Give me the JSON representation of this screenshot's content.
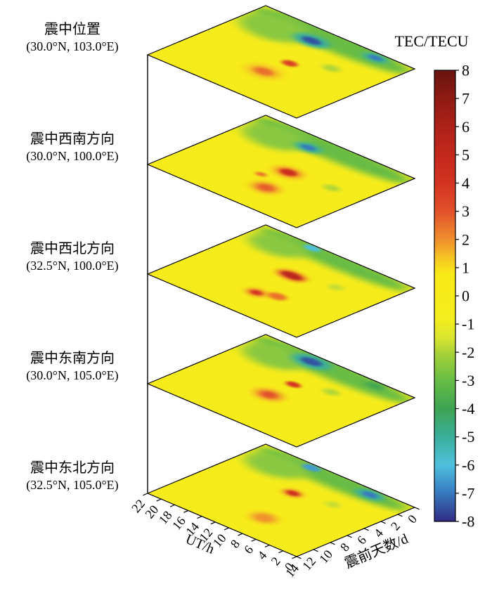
{
  "chart_data": {
    "type": "heatmap",
    "description": "Stack of 5 oblique TEC anomaly maps (UT hour vs days before earthquake) at and around the epicenter, sharing one color scale.",
    "x": {
      "label": "UT/h",
      "range": [
        0,
        22
      ],
      "ticks": [
        22,
        20,
        18,
        16,
        14,
        12,
        10,
        8,
        6,
        4,
        2,
        0
      ]
    },
    "y": {
      "label": "震前天数/d",
      "range": [
        0,
        14
      ],
      "ticks": [
        14,
        12,
        10,
        8,
        6,
        4,
        2,
        0
      ]
    },
    "background_value": 0,
    "colorbar": {
      "label": "TEC/TECU",
      "range": [
        -8,
        8
      ],
      "ticks": [
        8,
        7,
        6,
        5,
        4,
        3,
        2,
        1,
        0,
        -1,
        -2,
        -3,
        -4,
        -5,
        -6,
        -7,
        -8
      ],
      "stops": [
        {
          "v": 8,
          "c": "#681410"
        },
        {
          "v": 7,
          "c": "#8e1a13"
        },
        {
          "v": 6,
          "c": "#ad2118"
        },
        {
          "v": 5,
          "c": "#c3281c"
        },
        {
          "v": 4,
          "c": "#d33322"
        },
        {
          "v": 3,
          "c": "#e1512a"
        },
        {
          "v": 2,
          "c": "#f08e2e"
        },
        {
          "v": 1.3,
          "c": "#f6c823"
        },
        {
          "v": 0.8,
          "c": "#f8ea17"
        },
        {
          "v": -0.8,
          "c": "#f5ee1e"
        },
        {
          "v": -1.5,
          "c": "#d8e52f"
        },
        {
          "v": -2,
          "c": "#aad338"
        },
        {
          "v": -3,
          "c": "#67bc45"
        },
        {
          "v": -4,
          "c": "#3ea452"
        },
        {
          "v": -5,
          "c": "#3aaf9b"
        },
        {
          "v": -6,
          "c": "#4fc0dd"
        },
        {
          "v": -6.8,
          "c": "#3a87c8"
        },
        {
          "v": -7.5,
          "c": "#3353a0"
        },
        {
          "v": -8,
          "c": "#322a85"
        }
      ]
    },
    "layers": [
      {
        "name": "震中位置",
        "coordinates": "(30.0°N, 103.0°E)",
        "anomalies": [
          {
            "ut": 11,
            "days_before": 1.0,
            "tec": -3,
            "spread_ut": 11.5,
            "spread_days": 1.6,
            "blur": 0.035
          },
          {
            "ut": 17.5,
            "days_before": 2.6,
            "tec": -2.5,
            "spread_ut": 4.5,
            "spread_days": 2.2,
            "blur": 0.035
          },
          {
            "ut": 12.5,
            "days_before": 2.2,
            "tec": -5,
            "spread_ut": 2.4,
            "spread_days": 1.0,
            "blur": 0.02
          },
          {
            "ut": 12.5,
            "days_before": 2.2,
            "tec": -7.5,
            "spread_ut": 1.3,
            "spread_days": 0.5,
            "blur": 0.012
          },
          {
            "ut": 4.8,
            "days_before": 0.8,
            "tec": -5,
            "spread_ut": 1.7,
            "spread_days": 0.7,
            "blur": 0.02
          },
          {
            "ut": 4.8,
            "days_before": 0.8,
            "tec": -7,
            "spread_ut": 0.9,
            "spread_days": 0.35,
            "blur": 0.012
          },
          {
            "ut": 6.2,
            "days_before": 4.9,
            "tec": -2,
            "spread_ut": 1.1,
            "spread_days": 0.55,
            "blur": 0.018
          },
          {
            "ut": 10.6,
            "days_before": 9.4,
            "tec": 1.5,
            "spread_ut": 2.2,
            "spread_days": 1.1,
            "blur": 0.03
          },
          {
            "ut": 10.6,
            "days_before": 9.4,
            "tec": 2.5,
            "spread_ut": 1.3,
            "spread_days": 0.6,
            "blur": 0.015
          },
          {
            "ut": 10.1,
            "days_before": 6.7,
            "tec": 3.5,
            "spread_ut": 1.0,
            "spread_days": 0.5,
            "blur": 0.012
          }
        ]
      },
      {
        "name": "震中西南方向",
        "coordinates": "(30.0°N, 100.0°E)",
        "anomalies": [
          {
            "ut": 11,
            "days_before": 1.0,
            "tec": -3,
            "spread_ut": 11.5,
            "spread_days": 1.5,
            "blur": 0.035
          },
          {
            "ut": 17.5,
            "days_before": 2.5,
            "tec": -2.5,
            "spread_ut": 4.2,
            "spread_days": 2.0,
            "blur": 0.035
          },
          {
            "ut": 13.2,
            "days_before": 2.0,
            "tec": -5,
            "spread_ut": 1.8,
            "spread_days": 0.75,
            "blur": 0.02
          },
          {
            "ut": 13.2,
            "days_before": 2.0,
            "tec": -7,
            "spread_ut": 0.9,
            "spread_days": 0.4,
            "blur": 0.012
          },
          {
            "ut": 10.3,
            "days_before": 6.7,
            "tec": 2,
            "spread_ut": 1.8,
            "spread_days": 0.9,
            "blur": 0.025
          },
          {
            "ut": 10.3,
            "days_before": 6.7,
            "tec": 4.5,
            "spread_ut": 1.1,
            "spread_days": 0.55,
            "blur": 0.012
          },
          {
            "ut": 9.3,
            "days_before": 10.2,
            "tec": 2,
            "spread_ut": 1.7,
            "spread_days": 0.95,
            "blur": 0.025
          },
          {
            "ut": 9.3,
            "days_before": 10.2,
            "tec": 2.8,
            "spread_ut": 1.0,
            "spread_days": 0.55,
            "blur": 0.015
          },
          {
            "ut": 4.4,
            "days_before": 6.3,
            "tec": -2,
            "spread_ut": 1.0,
            "spread_days": 0.5,
            "blur": 0.018
          },
          {
            "ut": 12.0,
            "days_before": 8.6,
            "tec": 2.5,
            "spread_ut": 0.7,
            "spread_days": 0.35,
            "blur": 0.012
          }
        ]
      },
      {
        "name": "震中西北方向",
        "coordinates": "(32.5°N, 100.0°E)",
        "anomalies": [
          {
            "ut": 11,
            "days_before": 0.8,
            "tec": -3,
            "spread_ut": 11,
            "spread_days": 1.3,
            "blur": 0.035
          },
          {
            "ut": 17.5,
            "days_before": 2.2,
            "tec": -2.5,
            "spread_ut": 3.8,
            "spread_days": 1.7,
            "blur": 0.035
          },
          {
            "ut": 14.5,
            "days_before": 0.5,
            "tec": -6,
            "spread_ut": 1.1,
            "spread_days": 0.45,
            "blur": 0.012
          },
          {
            "ut": 11.2,
            "days_before": 5.6,
            "tec": 2.5,
            "spread_ut": 2.0,
            "spread_days": 0.8,
            "blur": 0.02
          },
          {
            "ut": 11.2,
            "days_before": 5.6,
            "tec": 5.5,
            "spread_ut": 1.4,
            "spread_days": 0.5,
            "blur": 0.012
          },
          {
            "ut": 10.8,
            "days_before": 10.1,
            "tec": 2,
            "spread_ut": 1.3,
            "spread_days": 0.7,
            "blur": 0.02
          },
          {
            "ut": 10.8,
            "days_before": 10.1,
            "tec": 4,
            "spread_ut": 0.75,
            "spread_days": 0.4,
            "blur": 0.012
          },
          {
            "ut": 8.6,
            "days_before": 9.4,
            "tec": 2.5,
            "spread_ut": 1.2,
            "spread_days": 0.6,
            "blur": 0.015
          },
          {
            "ut": 5.9,
            "days_before": 4.6,
            "tec": -1.8,
            "spread_ut": 0.9,
            "spread_days": 0.5,
            "blur": 0.02
          }
        ]
      },
      {
        "name": "震中东南方向",
        "coordinates": "(30.0°N, 105.0°E)",
        "anomalies": [
          {
            "ut": 11,
            "days_before": 1.0,
            "tec": -3,
            "spread_ut": 11.5,
            "spread_days": 1.5,
            "blur": 0.035
          },
          {
            "ut": 17.5,
            "days_before": 2.5,
            "tec": -2.5,
            "spread_ut": 4.2,
            "spread_days": 2.0,
            "blur": 0.035
          },
          {
            "ut": 13.9,
            "days_before": 1.1,
            "tec": -5,
            "spread_ut": 2.6,
            "spread_days": 1.1,
            "blur": 0.022
          },
          {
            "ut": 13.9,
            "days_before": 1.1,
            "tec": -7.5,
            "spread_ut": 1.4,
            "spread_days": 0.55,
            "blur": 0.012
          },
          {
            "ut": 5.0,
            "days_before": 0.7,
            "tec": -4,
            "spread_ut": 1.3,
            "spread_days": 0.5,
            "blur": 0.02
          },
          {
            "ut": 11.2,
            "days_before": 8.3,
            "tec": 2,
            "spread_ut": 1.8,
            "spread_days": 0.95,
            "blur": 0.025
          },
          {
            "ut": 11.2,
            "days_before": 8.3,
            "tec": 3,
            "spread_ut": 1.0,
            "spread_days": 0.55,
            "blur": 0.015
          },
          {
            "ut": 11.2,
            "days_before": 5.4,
            "tec": 4,
            "spread_ut": 0.95,
            "spread_days": 0.45,
            "blur": 0.012
          },
          {
            "ut": 7.1,
            "days_before": 4.2,
            "tec": -2,
            "spread_ut": 1.0,
            "spread_days": 0.5,
            "blur": 0.018
          }
        ]
      },
      {
        "name": "震中东北方向",
        "coordinates": "(32.5°N, 105.0°E)",
        "anomalies": [
          {
            "ut": 11,
            "days_before": 0.9,
            "tec": -3,
            "spread_ut": 11,
            "spread_days": 1.4,
            "blur": 0.035
          },
          {
            "ut": 17.5,
            "days_before": 2.4,
            "tec": -2.5,
            "spread_ut": 4.0,
            "spread_days": 1.9,
            "blur": 0.035
          },
          {
            "ut": 14.5,
            "days_before": 0.6,
            "tec": -6.5,
            "spread_ut": 1.2,
            "spread_days": 0.5,
            "blur": 0.013
          },
          {
            "ut": 5.5,
            "days_before": 0.9,
            "tec": -5,
            "spread_ut": 1.9,
            "spread_days": 0.8,
            "blur": 0.02
          },
          {
            "ut": 5.5,
            "days_before": 0.9,
            "tec": -7,
            "spread_ut": 1.0,
            "spread_days": 0.4,
            "blur": 0.012
          },
          {
            "ut": 11.4,
            "days_before": 5.3,
            "tec": 2.2,
            "spread_ut": 1.3,
            "spread_days": 0.6,
            "blur": 0.02
          },
          {
            "ut": 11.4,
            "days_before": 5.3,
            "tec": 4.5,
            "spread_ut": 0.8,
            "spread_days": 0.4,
            "blur": 0.012
          },
          {
            "ut": 9.2,
            "days_before": 10.5,
            "tec": 2,
            "spread_ut": 1.5,
            "spread_days": 0.9,
            "blur": 0.025
          },
          {
            "ut": 6.5,
            "days_before": 4.5,
            "tec": -1.8,
            "spread_ut": 0.9,
            "spread_days": 0.5,
            "blur": 0.02
          }
        ]
      }
    ]
  }
}
